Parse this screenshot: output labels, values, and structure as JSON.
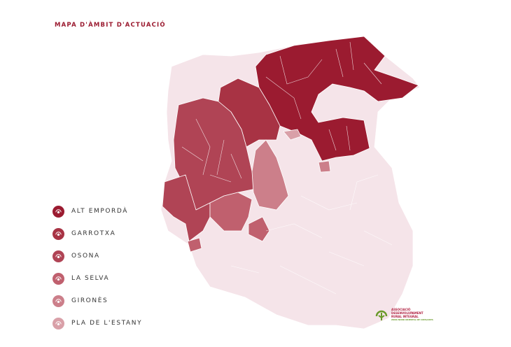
{
  "title": "MAPA D'ÀMBIT D'ACTUACIÓ",
  "legend": [
    {
      "label": "ALT EMPORDÀ",
      "color": "#9b1b30",
      "icon": "grape-emblem-icon"
    },
    {
      "label": "GARROTXA",
      "color": "#a83344",
      "icon": "grape-emblem-icon"
    },
    {
      "label": "OSONA",
      "color": "#b04455",
      "icon": "grape-emblem-icon"
    },
    {
      "label": "LA SELVA",
      "color": "#c0606e",
      "icon": "grape-emblem-icon"
    },
    {
      "label": "GIRONÈS",
      "color": "#cc7f8a",
      "icon": "grape-emblem-icon"
    },
    {
      "label": "PLA DE L'ESTANY",
      "color": "#d9a0a8",
      "icon": "grape-emblem-icon"
    }
  ],
  "map": {
    "base_color": "#f5e4e9",
    "border_color": "#ffffff"
  },
  "logo": {
    "line1": "ASSOCIACIÓ",
    "line2": "DESENVOLUPAMENT",
    "line3": "RURAL INTEGRAL",
    "line4": "ZONA NORD ORIENTAL DE CATALUNYA",
    "color": "#6a9a2a"
  }
}
